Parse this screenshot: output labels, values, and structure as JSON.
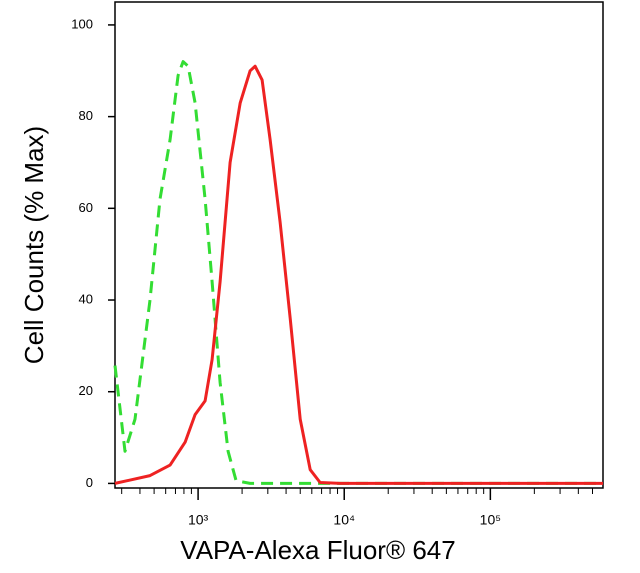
{
  "chart_data": {
    "type": "line",
    "xlabel": "VAPA-Alexa Fluor® 647",
    "ylabel": "Cell Counts (% Max)",
    "xscale": "log",
    "xlim": [
      270,
      590000
    ],
    "ylim": [
      -1,
      105
    ],
    "xticks": [
      {
        "value": 1000,
        "label": "10³"
      },
      {
        "value": 10000,
        "label": "10⁴"
      },
      {
        "value": 100000,
        "label": "10⁵"
      }
    ],
    "xminorticks": [
      300,
      400,
      500,
      600,
      700,
      800,
      900,
      2000,
      3000,
      4000,
      5000,
      6000,
      7000,
      8000,
      9000,
      20000,
      30000,
      40000,
      50000,
      60000,
      70000,
      80000,
      90000,
      200000,
      300000,
      400000,
      500000
    ],
    "yticks": [
      0,
      20,
      40,
      60,
      80,
      100
    ],
    "series": [
      {
        "color": "#33dd33",
        "dashed": true,
        "x": [
          270,
          316,
          370,
          469,
          549,
          643,
          730,
          789,
          854,
          954,
          1117,
          1247,
          1415,
          1605,
          1820,
          2270,
          24200,
          590000
        ],
        "values": [
          25.7,
          7,
          14,
          40,
          62,
          75,
          89,
          92,
          91,
          83,
          62,
          44,
          22,
          7,
          0.6,
          0,
          0,
          0
        ]
      },
      {
        "color": "#ee2222",
        "dashed": false,
        "x": [
          270,
          469,
          643,
          815,
          954,
          1117,
          1247,
          1415,
          1655,
          1940,
          2270,
          2457,
          2740,
          3110,
          3640,
          4270,
          5000,
          5850,
          6840,
          9390,
          590000
        ],
        "values": [
          0,
          1.7,
          4,
          9,
          15,
          18,
          27,
          44,
          70,
          83,
          90,
          91,
          88,
          75,
          57,
          36,
          14,
          3,
          0.2,
          0,
          0
        ]
      }
    ]
  }
}
